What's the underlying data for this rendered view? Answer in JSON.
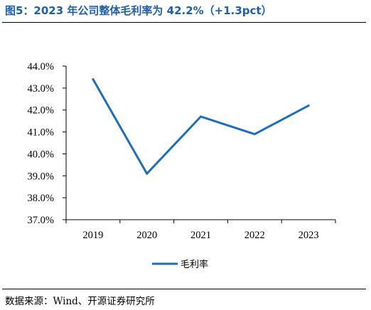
{
  "figure_title": "图5：2023 年公司整体毛利率为 42.2%（+1.3pct）",
  "source_note": "数据来源：Wind、开源证券研究所",
  "chart_data": {
    "type": "line",
    "categories": [
      "2019",
      "2020",
      "2021",
      "2022",
      "2023"
    ],
    "series": [
      {
        "name": "毛利率",
        "values": [
          43.4,
          39.1,
          41.7,
          40.9,
          42.2
        ],
        "color": "#1f6fb8"
      }
    ],
    "ylim": [
      37.0,
      44.0
    ],
    "yticks": [
      "37.0%",
      "38.0%",
      "39.0%",
      "40.0%",
      "41.0%",
      "42.0%",
      "43.0%",
      "44.0%"
    ],
    "grid": false,
    "legend_position": "bottom"
  }
}
